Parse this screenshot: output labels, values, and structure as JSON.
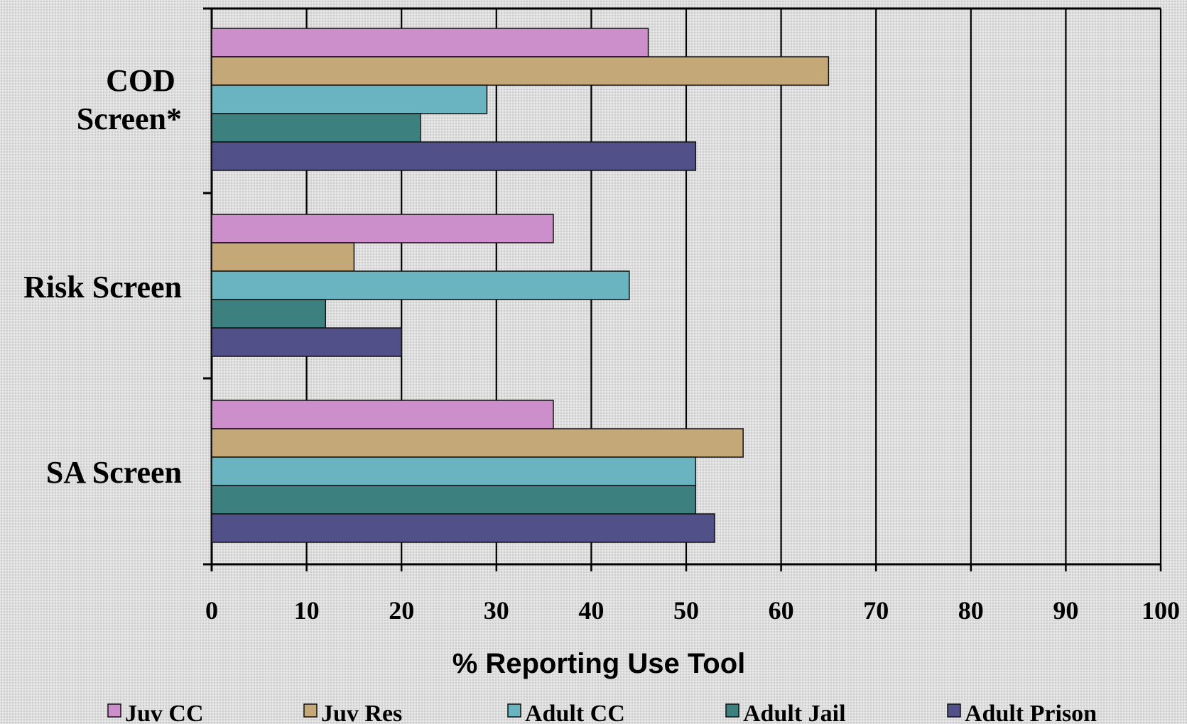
{
  "chart_data": {
    "type": "bar",
    "orientation": "horizontal",
    "categories": [
      "COD Screen*",
      "Risk Screen",
      "SA Screen"
    ],
    "category_lines": [
      [
        "COD",
        "Screen*"
      ],
      [
        "Risk Screen"
      ],
      [
        "SA Screen"
      ]
    ],
    "series": [
      {
        "name": "Juv CC",
        "color": "#cc8fcc",
        "values": [
          46,
          36,
          36
        ]
      },
      {
        "name": "Juv Res",
        "color": "#c4a878",
        "values": [
          65,
          15,
          56
        ]
      },
      {
        "name": "Adult CC",
        "color": "#69b4c0",
        "values": [
          29,
          44,
          51
        ]
      },
      {
        "name": "Adult Jail",
        "color": "#3d8080",
        "values": [
          22,
          12,
          51
        ]
      },
      {
        "name": "Adult Prison",
        "color": "#525088",
        "values": [
          51,
          20,
          53
        ]
      }
    ],
    "xlim": [
      0,
      100
    ],
    "xticks": [
      "0",
      "10",
      "20",
      "30",
      "40",
      "50",
      "60",
      "70",
      "80",
      "90",
      "100"
    ],
    "xlabel": "% Reporting Use Tool",
    "ylabel": "",
    "title": "",
    "grid": true,
    "legend_position": "bottom"
  }
}
